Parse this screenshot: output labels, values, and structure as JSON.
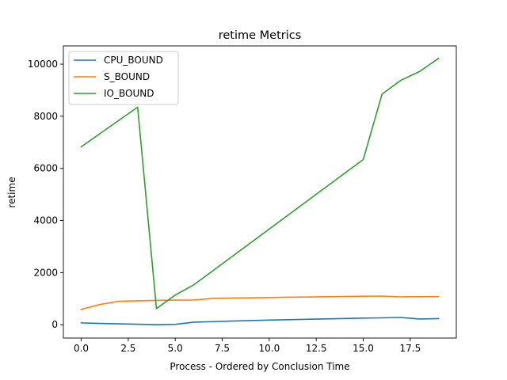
{
  "chart_data": {
    "type": "line",
    "title": "retime Metrics",
    "xlabel": "Process - Ordered by Conclusion Time",
    "ylabel": "retime",
    "xlim": [
      -0.95,
      19.95
    ],
    "ylim": [
      -510,
      10700
    ],
    "xticks": [
      0,
      2.5,
      5,
      7.5,
      10,
      12.5,
      15,
      17.5
    ],
    "xtick_labels": [
      "0.0",
      "2.5",
      "5.0",
      "7.5",
      "10.0",
      "12.5",
      "15.0",
      "17.5"
    ],
    "yticks": [
      0,
      2000,
      4000,
      6000,
      8000,
      10000
    ],
    "ytick_labels": [
      "0",
      "2000",
      "4000",
      "6000",
      "8000",
      "10000"
    ],
    "grid": false,
    "legend_position": "top-left",
    "series": [
      {
        "name": "CPU_BOUND",
        "color": "#1f77b4",
        "x": [
          0,
          1,
          2,
          3,
          4,
          5,
          6,
          7,
          8,
          9,
          10,
          11,
          12,
          13,
          14,
          15,
          16,
          17,
          18,
          19
        ],
        "y": [
          70,
          50,
          35,
          20,
          5,
          15,
          100,
          120,
          140,
          160,
          180,
          195,
          210,
          225,
          240,
          255,
          265,
          280,
          220,
          235
        ]
      },
      {
        "name": "S_BOUND",
        "color": "#ff7f0e",
        "x": [
          0,
          1,
          2,
          3,
          4,
          5,
          6,
          7,
          8,
          9,
          10,
          11,
          12,
          13,
          14,
          15,
          16,
          17,
          18,
          19
        ],
        "y": [
          590,
          780,
          900,
          920,
          935,
          945,
          950,
          1010,
          1025,
          1035,
          1045,
          1055,
          1065,
          1075,
          1085,
          1095,
          1100,
          1070,
          1075,
          1085
        ]
      },
      {
        "name": "IO_BOUND",
        "color": "#2ca02c",
        "x": [
          0,
          3,
          4,
          5,
          6,
          15,
          16,
          17,
          18,
          19
        ],
        "y": [
          6830,
          8350,
          620,
          1140,
          1540,
          6340,
          8850,
          9380,
          9720,
          10220
        ]
      }
    ]
  }
}
